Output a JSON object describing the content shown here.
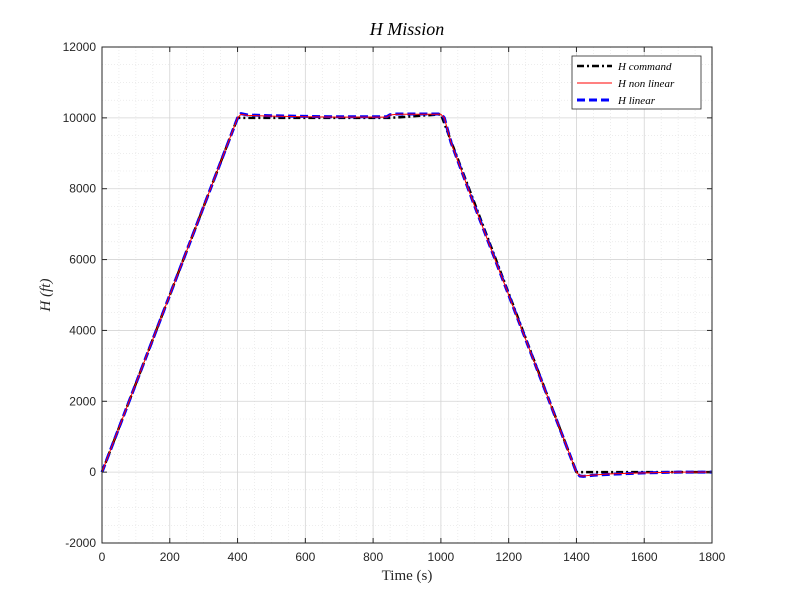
{
  "chart_data": {
    "type": "line",
    "title": "H  Mission",
    "xlabel": "Time (s)",
    "ylabel": "H  (ft)",
    "xlim": [
      0,
      1800
    ],
    "ylim": [
      -2000,
      12000
    ],
    "xticks": [
      0,
      200,
      400,
      600,
      800,
      1000,
      1200,
      1400,
      1600,
      1800
    ],
    "yticks": [
      -2000,
      0,
      2000,
      4000,
      6000,
      8000,
      10000,
      12000
    ],
    "grid": true,
    "minor_grid": true,
    "legend_position": "top-right",
    "series": [
      {
        "name": "H  command",
        "color": "#000000",
        "style": "dash-dot",
        "x": [
          0,
          400,
          850,
          1000,
          1400,
          1800
        ],
        "y": [
          0,
          10000,
          10000,
          10100,
          0,
          0
        ]
      },
      {
        "name": "H  non linear",
        "color": "#ff0000",
        "style": "solid",
        "x": [
          0,
          400,
          410,
          430,
          500,
          600,
          700,
          840,
          850,
          870,
          900,
          1000,
          1010,
          1030,
          1100,
          1200,
          1300,
          1400,
          1410,
          1420,
          1450,
          1500,
          1600,
          1700,
          1800
        ],
        "y": [
          0,
          10000,
          10100,
          10070,
          10050,
          10030,
          10020,
          10020,
          10080,
          10100,
          10100,
          10100,
          10000,
          9300,
          7500,
          5000,
          2500,
          0,
          -100,
          -110,
          -80,
          -50,
          -20,
          0,
          0
        ]
      },
      {
        "name": "H  linear",
        "color": "#0000ff",
        "style": "dashed",
        "x": [
          0,
          400,
          410,
          430,
          500,
          600,
          700,
          840,
          850,
          870,
          900,
          1000,
          1010,
          1030,
          1100,
          1200,
          1300,
          1400,
          1410,
          1420,
          1450,
          1500,
          1600,
          1700,
          1800
        ],
        "y": [
          0,
          10000,
          10120,
          10080,
          10060,
          10040,
          10030,
          10030,
          10090,
          10110,
          10110,
          10110,
          10000,
          9300,
          7500,
          5000,
          2500,
          0,
          -110,
          -120,
          -90,
          -60,
          -20,
          0,
          0
        ]
      }
    ]
  }
}
